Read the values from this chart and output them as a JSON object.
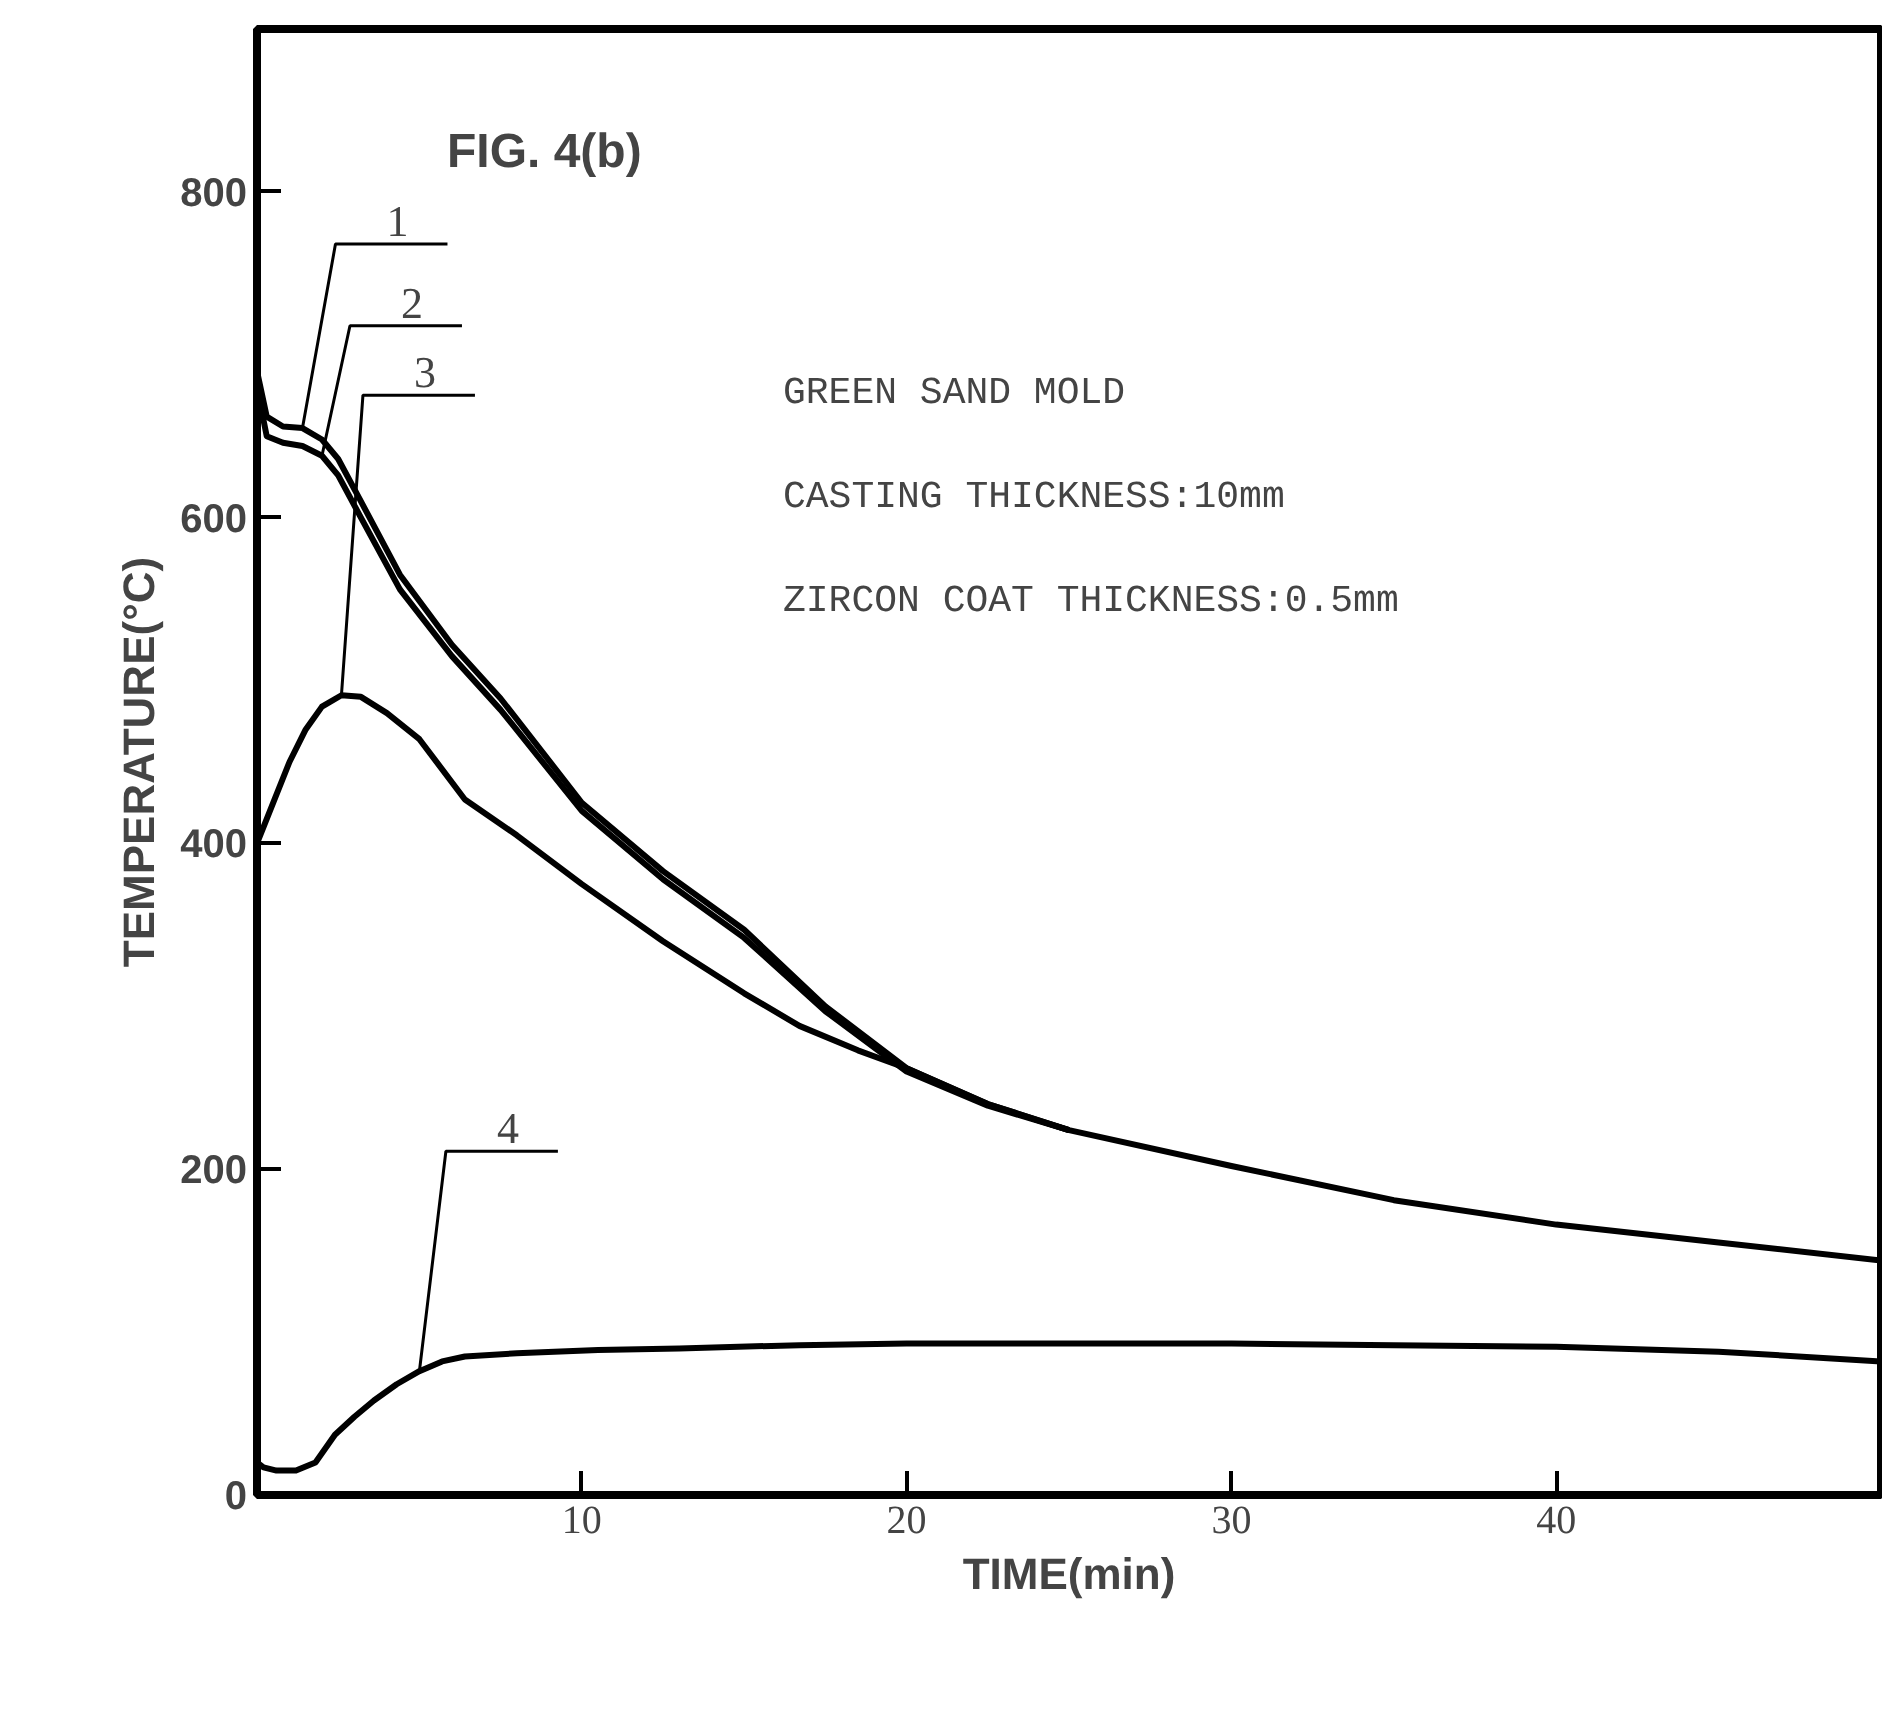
{
  "chart_data": {
    "type": "line",
    "title": "FIG. 4(b)",
    "xlabel": "TIME(min)",
    "ylabel": "TEMPERATURE(°C)",
    "xlim": [
      0,
      50
    ],
    "ylim": [
      0,
      900
    ],
    "xticks": [
      10,
      20,
      30,
      40
    ],
    "yticks": [
      0,
      200,
      400,
      600,
      800
    ],
    "grid": false,
    "marker": "none",
    "line_style": "solid",
    "annotations": [
      "GREEN SAND MOLD",
      "CASTING THICKNESS:10mm",
      "ZIRCON COAT THICKNESS:0.5mm"
    ],
    "series": [
      {
        "name": "1",
        "color": "#000000",
        "x": [
          0,
          0.3,
          0.8,
          1.4,
          2.0,
          2.5,
          3.2,
          4.4,
          6,
          7.5,
          10,
          12.5,
          15,
          17.5,
          20,
          22.5,
          25,
          30,
          35,
          40,
          45,
          50
        ],
        "values": [
          690,
          662,
          656,
          655,
          648,
          636,
          610,
          565,
          522,
          489,
          425,
          383,
          347,
          300,
          262,
          240,
          224,
          202,
          181,
          166,
          155,
          144
        ]
      },
      {
        "name": "2",
        "color": "#000000",
        "x": [
          0,
          0.3,
          0.8,
          1.4,
          2.0,
          2.5,
          3.2,
          4.4,
          6,
          7.5,
          10,
          12.5,
          15,
          17.5,
          20,
          22.5,
          25
        ],
        "values": [
          680,
          650,
          646,
          644,
          638,
          626,
          600,
          556,
          515,
          482,
          420,
          378,
          342,
          297,
          260,
          239,
          224
        ]
      },
      {
        "name": "3",
        "color": "#000000",
        "x": [
          0,
          0.5,
          1,
          1.5,
          2,
          2.6,
          3.2,
          4,
          5,
          6.4,
          8,
          10,
          12.5,
          15,
          16.7,
          18.5,
          20,
          22.5,
          25
        ],
        "values": [
          400,
          425,
          450,
          470,
          484,
          491,
          490,
          480,
          464,
          427,
          405,
          375,
          340,
          308,
          288,
          273,
          262,
          240,
          224
        ]
      },
      {
        "name": "4",
        "color": "#000000",
        "x": [
          0,
          0.2,
          0.6,
          1.2,
          1.8,
          2.4,
          3,
          3.6,
          4.3,
          5,
          5.7,
          6.4,
          8,
          10.5,
          13,
          16.7,
          20,
          25,
          30,
          35,
          40,
          45,
          50
        ],
        "values": [
          20,
          17,
          15,
          15,
          20,
          37,
          48,
          58,
          68,
          76,
          82,
          85,
          87,
          89,
          90,
          92,
          93,
          93,
          93,
          92,
          91,
          88,
          82
        ]
      }
    ]
  }
}
